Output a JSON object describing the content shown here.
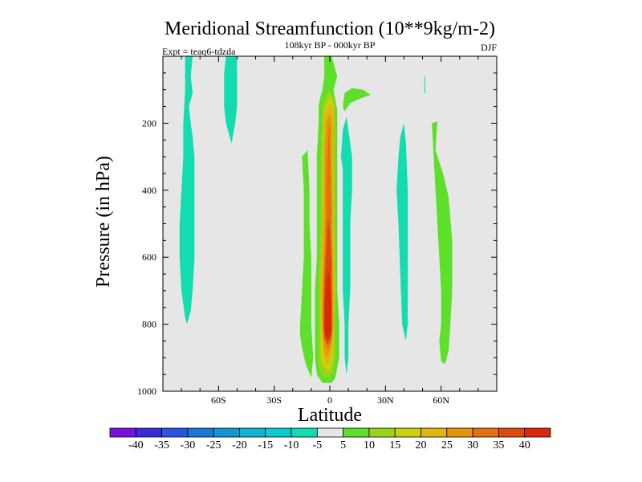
{
  "chart_data": {
    "type": "contour",
    "title": "Meridional Streamfunction (10**9kg/m-2)",
    "subtitle": "108kyr BP - 000kyr BP",
    "left_label": "Expt = teaq6-tdzda",
    "right_label": "DJF",
    "xlabel": "Latitude",
    "ylabel": "Pressure (in hPa)",
    "xlim": [
      -90,
      90
    ],
    "ylim": [
      1000,
      0
    ],
    "x_ticks": [
      {
        "value": -60,
        "label": "60S"
      },
      {
        "value": -30,
        "label": "30S"
      },
      {
        "value": 0,
        "label": "0"
      },
      {
        "value": 30,
        "label": "30N"
      },
      {
        "value": 60,
        "label": "60N"
      }
    ],
    "y_ticks": [
      {
        "value": 200,
        "label": "200"
      },
      {
        "value": 400,
        "label": "400"
      },
      {
        "value": 600,
        "label": "600"
      },
      {
        "value": 800,
        "label": "800"
      },
      {
        "value": 1000,
        "label": "1000"
      }
    ],
    "background_color": "#e6e6e6",
    "colorbar": {
      "boundaries": [
        "-40",
        "-35",
        "-30",
        "-25",
        "-20",
        "-15",
        "-10",
        "-5",
        "5",
        "10",
        "15",
        "20",
        "25",
        "30",
        "35",
        "40"
      ],
      "colors": [
        "#7a10e0",
        "#3a2ad8",
        "#2a55e0",
        "#1a78d6",
        "#0e97d0",
        "#0cb6d2",
        "#0ccad0",
        "#12dcb0",
        "#e6e6e6",
        "#5ce02a",
        "#9ad418",
        "#c8d20e",
        "#e2b60c",
        "#e6960c",
        "#e4700e",
        "#de4a0e",
        "#d82a0a"
      ]
    },
    "regions": [
      {
        "name": "sh-high-lat-cell-negative",
        "level": "-10 to -5",
        "color": "#12dcb0",
        "outline": [
          [
            -78,
            0
          ],
          [
            -74,
            0
          ],
          [
            -75,
            60
          ],
          [
            -74,
            110
          ],
          [
            -76,
            150
          ],
          [
            -75,
            200
          ],
          [
            -74,
            240
          ],
          [
            -73,
            300
          ],
          [
            -73,
            400
          ],
          [
            -73,
            500
          ],
          [
            -73,
            600
          ],
          [
            -74,
            700
          ],
          [
            -75,
            760
          ],
          [
            -77,
            800
          ],
          [
            -78,
            780
          ],
          [
            -80,
            700
          ],
          [
            -81,
            600
          ],
          [
            -81,
            500
          ],
          [
            -80,
            400
          ],
          [
            -79,
            300
          ],
          [
            -79,
            200
          ],
          [
            -78,
            100
          ]
        ]
      },
      {
        "name": "sh-upper-cell-negative",
        "level": "-10 to -5",
        "color": "#12dcb0",
        "outline": [
          [
            -56,
            0
          ],
          [
            -50,
            0
          ],
          [
            -50,
            50
          ],
          [
            -50,
            100
          ],
          [
            -50,
            150
          ],
          [
            -51,
            200
          ],
          [
            -53,
            260
          ],
          [
            -54,
            240
          ],
          [
            -56,
            200
          ],
          [
            -57,
            150
          ],
          [
            -57,
            100
          ],
          [
            -57,
            50
          ]
        ]
      },
      {
        "name": "sh-subtropical-positive",
        "level": "5 to 10",
        "color": "#5ce02a",
        "outline": [
          [
            -15,
            300
          ],
          [
            -12,
            280
          ],
          [
            -11,
            400
          ],
          [
            -11,
            500
          ],
          [
            -10,
            600
          ],
          [
            -10,
            700
          ],
          [
            -10,
            800
          ],
          [
            -9,
            900
          ],
          [
            -10,
            960
          ],
          [
            -13,
            920
          ],
          [
            -15,
            870
          ],
          [
            -16,
            830
          ],
          [
            -16,
            800
          ],
          [
            -15,
            700
          ],
          [
            -14,
            600
          ],
          [
            -14,
            500
          ],
          [
            -14,
            400
          ]
        ]
      },
      {
        "name": "hadley-cell-positive",
        "level": "5 to 10",
        "color": "#5ce02a",
        "outline": [
          [
            -3,
            0
          ],
          [
            1,
            0
          ],
          [
            4,
            60
          ],
          [
            2,
            100
          ],
          [
            4,
            160
          ],
          [
            4,
            200
          ],
          [
            4,
            300
          ],
          [
            4,
            500
          ],
          [
            4,
            700
          ],
          [
            5,
            800
          ],
          [
            5,
            900
          ],
          [
            3,
            960
          ],
          [
            1,
            975
          ],
          [
            -4,
            975
          ],
          [
            -7,
            950
          ],
          [
            -8,
            900
          ],
          [
            -8,
            700
          ],
          [
            -7,
            600
          ],
          [
            -7,
            400
          ],
          [
            -7,
            300
          ],
          [
            -6,
            200
          ],
          [
            -6,
            150
          ],
          [
            -5,
            120
          ],
          [
            -4,
            100
          ],
          [
            -3,
            60
          ]
        ]
      },
      {
        "name": "nh-upper-positive",
        "level": "5 to 10",
        "color": "#5ce02a",
        "outline": [
          [
            7,
            150
          ],
          [
            8,
            110
          ],
          [
            12,
            95
          ],
          [
            18,
            100
          ],
          [
            22,
            115
          ],
          [
            17,
            125
          ],
          [
            11,
            140
          ],
          [
            8,
            165
          ]
        ]
      },
      {
        "name": "nh-midlat-negative",
        "level": "-10 to -5",
        "color": "#12dcb0",
        "outline": [
          [
            37,
            300
          ],
          [
            38,
            240
          ],
          [
            40,
            200
          ],
          [
            41,
            260
          ],
          [
            42,
            400
          ],
          [
            42,
            550
          ],
          [
            42,
            700
          ],
          [
            42,
            800
          ],
          [
            41,
            850
          ],
          [
            39,
            800
          ],
          [
            38,
            650
          ],
          [
            37,
            500
          ],
          [
            36,
            400
          ]
        ]
      },
      {
        "name": "equatorial-negative",
        "level": "-10 to -5",
        "color": "#12dcb0",
        "outline": [
          [
            7,
            340
          ],
          [
            6,
            300
          ],
          [
            7,
            220
          ],
          [
            9,
            180
          ],
          [
            10,
            220
          ],
          [
            12,
            300
          ],
          [
            12,
            400
          ],
          [
            11,
            500
          ],
          [
            11,
            600
          ],
          [
            11,
            700
          ],
          [
            10,
            800
          ],
          [
            10,
            900
          ],
          [
            9,
            950
          ],
          [
            8,
            900
          ],
          [
            8,
            800
          ],
          [
            7,
            700
          ],
          [
            7,
            600
          ],
          [
            7,
            500
          ]
        ]
      },
      {
        "name": "nh-highlat-positive",
        "level": "5 to 10",
        "color": "#5ce02a",
        "outline": [
          [
            55,
            200
          ],
          [
            58,
            195
          ],
          [
            57,
            280
          ],
          [
            61,
            350
          ],
          [
            64,
            420
          ],
          [
            66,
            550
          ],
          [
            66,
            700
          ],
          [
            65,
            800
          ],
          [
            64,
            880
          ],
          [
            62,
            920
          ],
          [
            60,
            910
          ],
          [
            59,
            850
          ],
          [
            60,
            800
          ],
          [
            60,
            700
          ],
          [
            59,
            600
          ],
          [
            58,
            500
          ],
          [
            57,
            400
          ],
          [
            56,
            300
          ]
        ]
      }
    ],
    "hadley_core_levels": [
      {
        "level": "10 to 15",
        "color": "#9ad418",
        "outline": [
          [
            -4,
            140
          ],
          [
            0,
            100
          ],
          [
            3,
            140
          ],
          [
            3,
            300
          ],
          [
            3,
            500
          ],
          [
            3,
            700
          ],
          [
            3,
            800
          ],
          [
            3,
            900
          ],
          [
            2,
            940
          ],
          [
            0,
            960
          ],
          [
            -4,
            955
          ],
          [
            -6,
            920
          ],
          [
            -6,
            800
          ],
          [
            -6,
            700
          ],
          [
            -5,
            500
          ],
          [
            -5,
            300
          ]
        ]
      },
      {
        "level": "15 to 20",
        "color": "#c8d20e",
        "outline": [
          [
            -3,
            160
          ],
          [
            0,
            115
          ],
          [
            2,
            140
          ],
          [
            2,
            300
          ],
          [
            2,
            500
          ],
          [
            3,
            700
          ],
          [
            2,
            800
          ],
          [
            2,
            900
          ],
          [
            0,
            940
          ],
          [
            -3,
            930
          ],
          [
            -5,
            900
          ],
          [
            -5,
            800
          ],
          [
            -5,
            700
          ],
          [
            -4,
            500
          ],
          [
            -4,
            300
          ]
        ]
      },
      {
        "level": "20 to 25",
        "color": "#e2b60c",
        "outline": [
          [
            -3,
            180
          ],
          [
            0,
            140
          ],
          [
            2,
            160
          ],
          [
            2,
            300
          ],
          [
            2,
            500
          ],
          [
            2,
            700
          ],
          [
            2,
            800
          ],
          [
            1,
            880
          ],
          [
            -1,
            920
          ],
          [
            -3,
            905
          ],
          [
            -4,
            850
          ],
          [
            -5,
            700
          ],
          [
            -4,
            500
          ],
          [
            -3,
            300
          ]
        ]
      },
      {
        "level": "25 to 30",
        "color": "#e6960c",
        "outline": [
          [
            -2,
            200
          ],
          [
            0,
            170
          ],
          [
            1,
            200
          ],
          [
            1,
            300
          ],
          [
            1,
            500
          ],
          [
            2,
            650
          ],
          [
            2,
            800
          ],
          [
            1,
            860
          ],
          [
            -1,
            895
          ],
          [
            -3,
            880
          ],
          [
            -4,
            820
          ],
          [
            -4,
            700
          ],
          [
            -3,
            500
          ],
          [
            -3,
            300
          ]
        ]
      },
      {
        "level": "30 to 35",
        "color": "#e4700e",
        "outline": [
          [
            -1,
            250
          ],
          [
            0,
            200
          ],
          [
            0,
            300
          ],
          [
            1,
            450
          ],
          [
            1,
            600
          ],
          [
            1,
            750
          ],
          [
            1,
            850
          ],
          [
            -1,
            870
          ],
          [
            -3,
            850
          ],
          [
            -4,
            780
          ],
          [
            -3,
            650
          ],
          [
            -2,
            500
          ],
          [
            -2,
            400
          ]
        ]
      },
      {
        "level": "35 to 40",
        "color": "#de4a0e",
        "outline": [
          [
            -1,
            480
          ],
          [
            0,
            520
          ],
          [
            1,
            620
          ],
          [
            1,
            720
          ],
          [
            1,
            830
          ],
          [
            -1,
            860
          ],
          [
            -3,
            840
          ],
          [
            -3,
            760
          ],
          [
            -3,
            660
          ],
          [
            -2,
            580
          ]
        ]
      },
      {
        "level": "> 40",
        "color": "#d82a0a",
        "outline": [
          [
            -1,
            640
          ],
          [
            0,
            650
          ],
          [
            1,
            740
          ],
          [
            1,
            820
          ],
          [
            -1,
            850
          ],
          [
            -3,
            820
          ],
          [
            -3,
            740
          ],
          [
            -2,
            680
          ]
        ]
      }
    ],
    "small_features": [
      {
        "name": "nh-upper-tick",
        "color": "#12dcb0",
        "outline": [
          [
            51,
            60
          ],
          [
            51.5,
            60
          ],
          [
            51.5,
            110
          ],
          [
            51,
            110
          ]
        ]
      }
    ]
  }
}
